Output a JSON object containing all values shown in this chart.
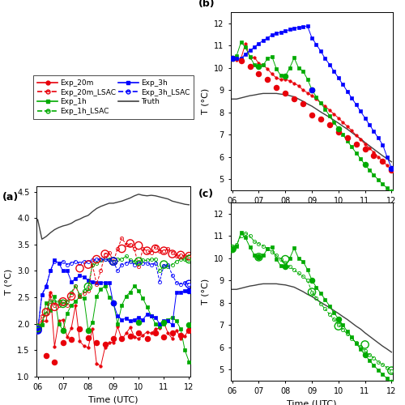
{
  "time_bg": [
    6.0,
    6.167,
    6.333,
    6.5,
    6.667,
    6.833,
    7.0,
    7.167,
    7.333,
    7.5,
    7.667,
    7.833,
    8.0,
    8.167,
    8.333,
    8.5,
    8.667,
    8.833,
    9.0,
    9.167,
    9.333,
    9.5,
    9.667,
    9.833,
    10.0,
    10.167,
    10.333,
    10.5,
    10.667,
    10.833,
    11.0,
    11.167,
    11.333,
    11.5,
    11.667,
    11.833,
    12.0
  ],
  "time_3h_analysis": [
    6.0,
    9.0,
    12.0
  ],
  "time_1h_analysis": [
    6.0,
    7.0,
    8.0,
    9.0,
    10.0,
    11.0,
    12.0
  ],
  "time_20m_analysis": [
    6.0,
    6.333,
    6.667,
    7.0,
    7.333,
    7.667,
    8.0,
    8.333,
    8.667,
    9.0,
    9.333,
    9.667,
    10.0,
    10.333,
    10.667,
    11.0,
    11.333,
    11.667,
    12.0
  ],
  "a_truth": [
    3.97,
    3.6,
    3.65,
    3.72,
    3.78,
    3.82,
    3.85,
    3.87,
    3.9,
    3.95,
    3.98,
    4.02,
    4.05,
    4.12,
    4.18,
    4.22,
    4.25,
    4.28,
    4.28,
    4.3,
    4.32,
    4.35,
    4.38,
    4.42,
    4.45,
    4.43,
    4.42,
    4.43,
    4.42,
    4.4,
    4.38,
    4.36,
    4.32,
    4.3,
    4.28,
    4.26,
    4.25
  ],
  "a_20m_bg": [
    1.88,
    2.05,
    2.05,
    2.6,
    1.57,
    2.05,
    2.08,
    1.75,
    1.92,
    2.35,
    1.67,
    1.58,
    1.55,
    1.9,
    1.25,
    1.2,
    1.55,
    1.65,
    1.65,
    1.95,
    1.7,
    1.82,
    1.93,
    1.75,
    1.72,
    1.78,
    1.85,
    1.82,
    1.9,
    1.92,
    2.02,
    1.82,
    1.72,
    1.88,
    1.72,
    1.77,
    1.9
  ],
  "a_20m_analysis": [
    1.88,
    1.4,
    1.28,
    1.65,
    1.7,
    1.9,
    1.73,
    1.65,
    1.62,
    1.72,
    1.72,
    1.77,
    1.82,
    1.72,
    1.82,
    1.75,
    1.82,
    1.78,
    1.88
  ],
  "a_1h_bg": [
    1.92,
    1.98,
    2.4,
    2.25,
    2.52,
    2.0,
    1.88,
    2.2,
    2.35,
    2.42,
    2.52,
    2.48,
    1.88,
    2.02,
    2.52,
    2.65,
    2.72,
    2.5,
    2.4,
    2.0,
    2.35,
    2.52,
    2.6,
    2.72,
    2.62,
    2.48,
    2.32,
    2.15,
    2.0,
    1.95,
    2.0,
    2.08,
    2.12,
    2.05,
    1.9,
    1.5,
    1.28
  ],
  "a_1h_analysis": [
    1.92,
    1.88,
    1.88,
    2.4,
    2.02,
    2.02,
    1.98
  ],
  "a_3h_bg": [
    1.88,
    2.55,
    2.7,
    3.0,
    3.2,
    3.15,
    3.0,
    3.0,
    2.8,
    2.85,
    2.92,
    2.88,
    2.82,
    2.8,
    2.78,
    2.78,
    2.78,
    2.78,
    2.38,
    2.15,
    2.08,
    2.1,
    2.05,
    2.08,
    2.12,
    2.08,
    2.18,
    2.15,
    2.12,
    2.0,
    2.05,
    2.05,
    1.98,
    2.6,
    2.6,
    2.62,
    2.62
  ],
  "a_3h_analysis": [
    1.88,
    2.4,
    2.62
  ],
  "a_20m_lsac_bg": [
    1.92,
    2.15,
    2.2,
    2.55,
    2.35,
    2.35,
    2.42,
    2.35,
    2.55,
    2.72,
    2.52,
    2.58,
    2.62,
    3.12,
    2.75,
    3.0,
    3.32,
    3.35,
    3.18,
    3.42,
    3.62,
    3.5,
    3.5,
    3.42,
    3.08,
    3.42,
    3.38,
    3.35,
    3.45,
    3.38,
    3.38,
    3.42,
    3.35,
    3.28,
    3.3,
    3.28,
    3.28
  ],
  "a_20m_lsac_analysis": [
    1.92,
    2.22,
    2.32,
    2.42,
    2.52,
    3.05,
    3.12,
    3.22,
    3.32,
    3.18,
    3.42,
    3.52,
    3.48,
    3.38,
    3.42,
    3.38,
    3.32,
    3.3,
    3.28
  ],
  "a_1h_lsac_bg": [
    1.92,
    2.0,
    2.2,
    2.42,
    2.42,
    2.42,
    2.38,
    2.42,
    2.6,
    2.72,
    2.55,
    2.62,
    2.7,
    3.12,
    3.15,
    3.2,
    3.22,
    3.22,
    3.18,
    3.22,
    3.22,
    3.28,
    3.2,
    3.18,
    3.18,
    3.2,
    3.2,
    3.22,
    3.22,
    3.0,
    3.1,
    3.08,
    3.12,
    3.18,
    3.22,
    3.22,
    3.22
  ],
  "a_1h_lsac_analysis": [
    1.92,
    2.38,
    2.7,
    3.18,
    3.18,
    3.12,
    3.22
  ],
  "a_3h_lsac_bg": [
    1.88,
    2.55,
    2.72,
    3.0,
    3.18,
    3.15,
    3.18,
    3.12,
    3.15,
    3.18,
    3.15,
    3.18,
    3.18,
    3.2,
    3.22,
    3.22,
    3.22,
    3.2,
    3.18,
    3.0,
    3.12,
    3.15,
    3.18,
    3.12,
    3.15,
    3.15,
    3.15,
    3.12,
    3.15,
    2.8,
    3.1,
    3.12,
    2.92,
    2.78,
    2.75,
    2.78,
    2.75
  ],
  "a_3h_lsac_analysis": [
    1.88,
    3.18,
    2.75
  ],
  "b_truth": [
    8.6,
    8.6,
    8.65,
    8.7,
    8.75,
    8.78,
    8.82,
    8.85,
    8.85,
    8.85,
    8.85,
    8.82,
    8.8,
    8.75,
    8.7,
    8.6,
    8.5,
    8.38,
    8.28,
    8.15,
    8.02,
    7.9,
    7.78,
    7.65,
    7.52,
    7.38,
    7.25,
    7.1,
    6.95,
    6.82,
    6.65,
    6.5,
    6.35,
    6.2,
    6.05,
    5.92,
    5.78
  ],
  "b_20m_bg": [
    10.42,
    10.35,
    10.42,
    11.1,
    10.45,
    10.48,
    10.2,
    10.12,
    9.95,
    9.72,
    9.55,
    9.48,
    9.48,
    9.42,
    9.3,
    9.2,
    9.0,
    8.88,
    8.75,
    8.6,
    8.42,
    8.28,
    8.1,
    7.92,
    7.75,
    7.55,
    7.38,
    7.18,
    6.98,
    6.78,
    6.58,
    6.4,
    6.2,
    6.0,
    5.82,
    5.62,
    5.42
  ],
  "b_20m_analysis": [
    10.42,
    10.32,
    10.05,
    9.72,
    9.48,
    9.12,
    8.88,
    8.62,
    8.38,
    7.9,
    7.7,
    7.45,
    7.12,
    6.88,
    6.58,
    6.35,
    6.05,
    5.8,
    5.42
  ],
  "b_1h_bg": [
    10.42,
    10.55,
    11.15,
    10.92,
    10.5,
    10.15,
    10.05,
    10.12,
    10.42,
    10.5,
    9.95,
    9.65,
    9.62,
    10.0,
    10.45,
    10.0,
    9.85,
    9.5,
    9.02,
    8.7,
    8.42,
    8.15,
    7.85,
    7.55,
    7.28,
    7.0,
    6.72,
    6.45,
    6.18,
    5.92,
    5.65,
    5.42,
    5.18,
    4.98,
    4.78,
    4.6,
    4.42
  ],
  "b_1h_analysis": [
    10.42,
    10.05,
    9.62,
    9.02,
    7.28,
    5.65,
    4.42
  ],
  "b_3h_bg": [
    10.42,
    10.42,
    10.42,
    10.62,
    10.78,
    10.92,
    11.1,
    11.22,
    11.35,
    11.48,
    11.55,
    11.6,
    11.65,
    11.72,
    11.78,
    11.82,
    11.85,
    11.88,
    11.35,
    11.05,
    10.75,
    10.42,
    10.15,
    9.85,
    9.55,
    9.25,
    8.95,
    8.65,
    8.35,
    8.05,
    7.75,
    7.45,
    7.15,
    6.85,
    6.55,
    6.0,
    5.5
  ],
  "b_3h_analysis": [
    10.42,
    9.02,
    5.5
  ],
  "c_truth": [
    8.6,
    8.6,
    8.65,
    8.7,
    8.75,
    8.78,
    8.82,
    8.85,
    8.85,
    8.85,
    8.85,
    8.82,
    8.8,
    8.75,
    8.7,
    8.6,
    8.5,
    8.38,
    8.28,
    8.15,
    8.02,
    7.9,
    7.78,
    7.65,
    7.52,
    7.38,
    7.25,
    7.1,
    6.95,
    6.82,
    6.65,
    6.5,
    6.35,
    6.2,
    6.05,
    5.92,
    5.78
  ],
  "c_1h_bg": [
    10.42,
    10.55,
    11.15,
    10.92,
    10.5,
    10.15,
    10.05,
    10.12,
    10.42,
    10.5,
    9.95,
    9.65,
    9.62,
    10.0,
    10.45,
    10.0,
    9.85,
    9.5,
    9.02,
    8.7,
    8.42,
    8.15,
    7.85,
    7.55,
    7.28,
    7.0,
    6.72,
    6.45,
    6.18,
    5.92,
    5.65,
    5.42,
    5.18,
    4.98,
    4.78,
    4.6,
    4.42
  ],
  "c_1h_analysis": [
    10.42,
    10.05,
    9.62,
    9.02,
    7.28,
    5.65,
    4.42
  ],
  "c_1h_lsac_bg": [
    10.42,
    10.6,
    11.02,
    11.12,
    11.0,
    10.75,
    10.65,
    10.55,
    10.42,
    10.3,
    10.12,
    9.95,
    9.8,
    9.62,
    9.48,
    9.32,
    9.18,
    9.02,
    8.48,
    8.22,
    7.95,
    7.72,
    7.48,
    7.25,
    7.02,
    6.8,
    6.6,
    6.4,
    6.2,
    6.02,
    5.85,
    5.68,
    5.52,
    5.35,
    5.22,
    5.08,
    4.95
  ],
  "c_1h_lsac_analysis": [
    10.42,
    10.05,
    9.95,
    8.48,
    6.95,
    6.12,
    4.95
  ],
  "color_red": "#e8000a",
  "color_green": "#00aa00",
  "color_blue": "#0000ff",
  "color_truth": "#404040",
  "color_green_light": "#33cc33"
}
